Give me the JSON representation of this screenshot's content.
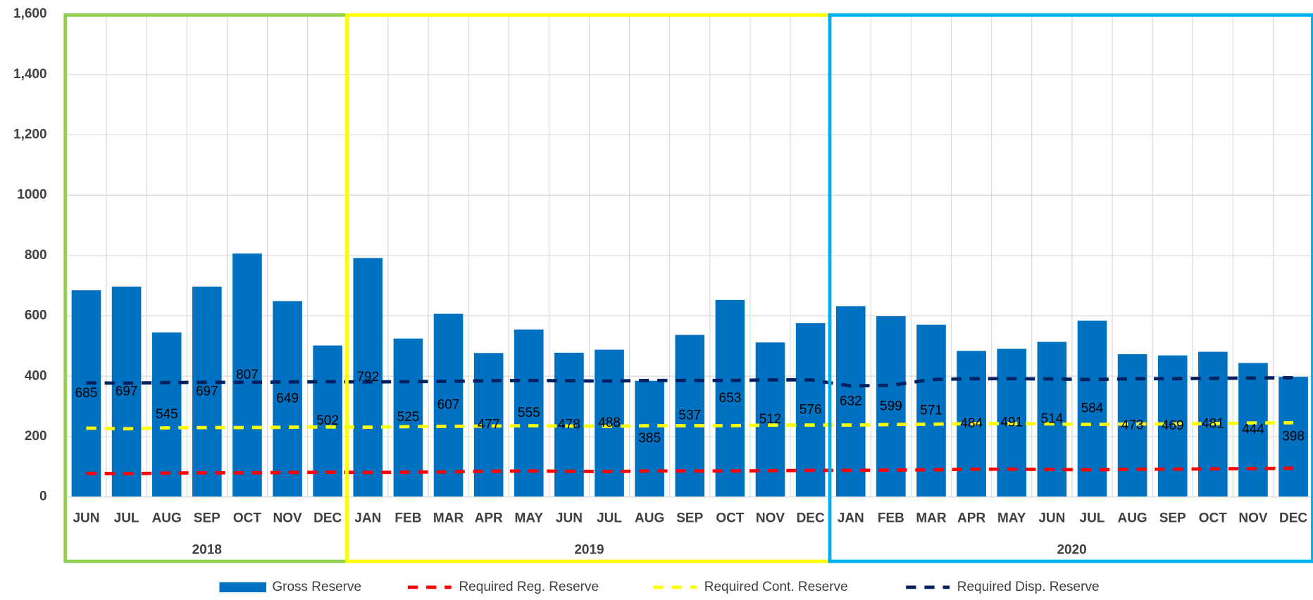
{
  "chart_data": {
    "type": "bar",
    "categories": [
      "JUN",
      "JUL",
      "AUG",
      "SEP",
      "OCT",
      "NOV",
      "DEC",
      "JAN",
      "FEB",
      "MAR",
      "APR",
      "MAY",
      "JUN",
      "JUL",
      "AUG",
      "SEP",
      "OCT",
      "NOV",
      "DEC",
      "JAN",
      "FEB",
      "MAR",
      "APR",
      "MAY",
      "JUN",
      "JUL",
      "AUG",
      "SEP",
      "OCT",
      "NOV",
      "DEC"
    ],
    "category_groups": [
      {
        "label": "2018",
        "color": "#92d050"
      },
      {
        "label": "2019",
        "color": "#ffff00"
      },
      {
        "label": "2020",
        "color": "#00b0f0"
      }
    ],
    "series": [
      {
        "name": "Gross Reserve",
        "color": "#0070c0",
        "style": "bar",
        "values": [
          685,
          697,
          545,
          697,
          807,
          649,
          502,
          792,
          525,
          607,
          477,
          555,
          478,
          488,
          385,
          537,
          653,
          512,
          576,
          632,
          599,
          571,
          484,
          491,
          514,
          584,
          473,
          469,
          481,
          444,
          398
        ]
      },
      {
        "name": "Required Reg. Reserve",
        "color": "#ff0000",
        "style": "dashed",
        "values": [
          78,
          77,
          79,
          80,
          80,
          81,
          82,
          81,
          82,
          83,
          85,
          86,
          85,
          84,
          86,
          86,
          86,
          87,
          88,
          88,
          89,
          90,
          92,
          92,
          91,
          90,
          92,
          92,
          93,
          94,
          95
        ]
      },
      {
        "name": "Required Cont. Reserve",
        "color": "#ffff00",
        "style": "dashed",
        "values": [
          228,
          226,
          229,
          230,
          230,
          231,
          232,
          231,
          233,
          234,
          235,
          236,
          235,
          234,
          236,
          236,
          236,
          238,
          238,
          238,
          240,
          241,
          243,
          243,
          242,
          240,
          242,
          242,
          243,
          245,
          246
        ]
      },
      {
        "name": "Required Disp. Reserve",
        "color": "#002060",
        "style": "dashed",
        "values": [
          378,
          377,
          379,
          380,
          380,
          381,
          382,
          381,
          382,
          383,
          385,
          386,
          385,
          384,
          386,
          386,
          386,
          388,
          388,
          368,
          370,
          389,
          392,
          392,
          391,
          389,
          392,
          392,
          393,
          394,
          395
        ]
      }
    ],
    "ylim": [
      0,
      1600
    ],
    "yticks": [
      0,
      200,
      400,
      600,
      800,
      1000,
      {
        "value": 1200,
        "label": "1,200"
      },
      {
        "value": 1400,
        "label": "1,400"
      },
      {
        "value": 1600,
        "label": "1,600"
      }
    ],
    "grid": true
  }
}
